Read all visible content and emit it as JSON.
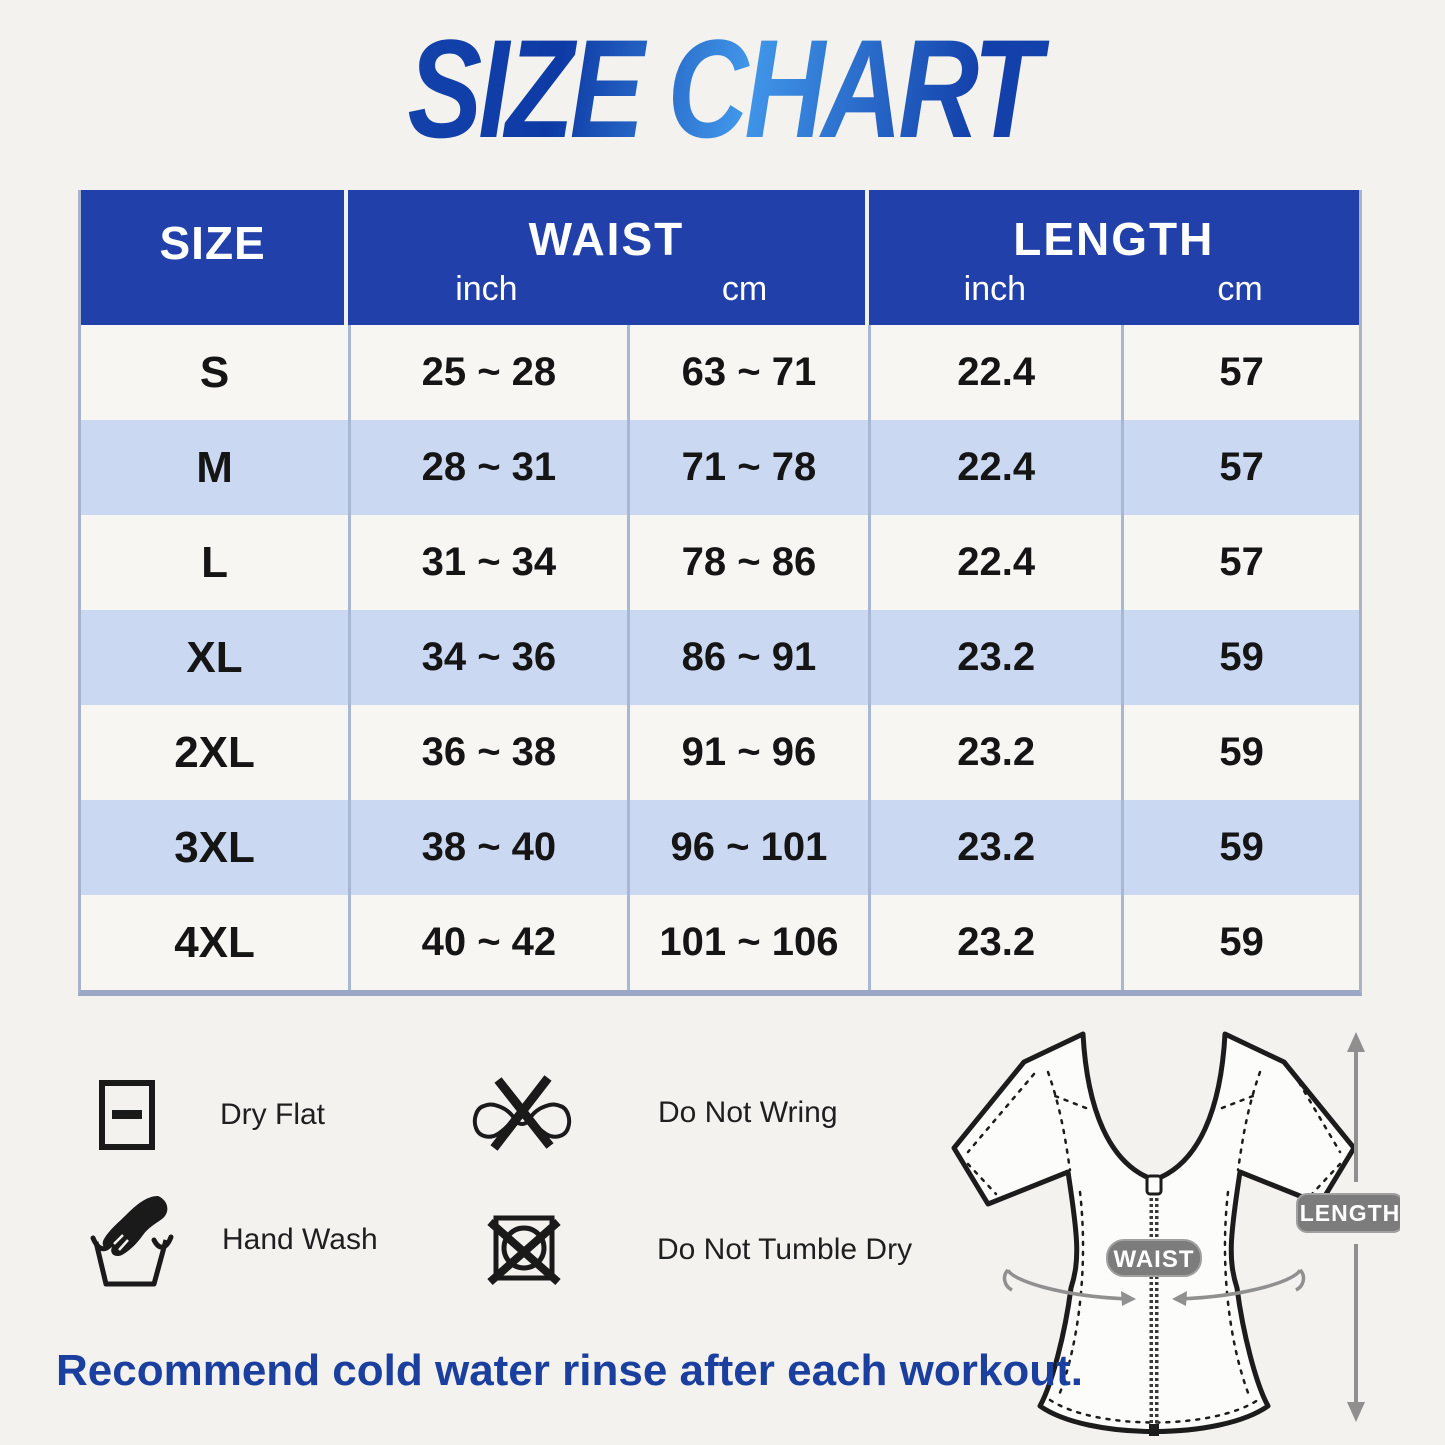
{
  "title": "SIZE CHART",
  "table": {
    "header": {
      "size": "SIZE",
      "waist": "WAIST",
      "length": "LENGTH",
      "waist_unit_inch": "inch",
      "waist_unit_cm": "cm",
      "length_unit_inch": "inch",
      "length_unit_cm": "cm"
    }
  },
  "chart_data": {
    "type": "table",
    "title": "SIZE CHART",
    "columns": [
      "SIZE",
      "WAIST inch",
      "WAIST cm",
      "LENGTH inch",
      "LENGTH cm"
    ],
    "rows": [
      [
        "S",
        "25 ~ 28",
        "63 ~ 71",
        "22.4",
        "57"
      ],
      [
        "M",
        "28 ~ 31",
        "71 ~ 78",
        "22.4",
        "57"
      ],
      [
        "L",
        "31 ~ 34",
        "78 ~ 86",
        "22.4",
        "57"
      ],
      [
        "XL",
        "34 ~ 36",
        "86 ~ 91",
        "23.2",
        "59"
      ],
      [
        "2XL",
        "36 ~ 38",
        "91 ~ 96",
        "23.2",
        "59"
      ],
      [
        "3XL",
        "38 ~ 40",
        "96 ~ 101",
        "23.2",
        "59"
      ],
      [
        "4XL",
        "40 ~ 42",
        "101 ~ 106",
        "23.2",
        "59"
      ]
    ]
  },
  "care": {
    "items": [
      {
        "icon": "dry-flat-icon",
        "label": "Dry Flat"
      },
      {
        "icon": "do-not-wring-icon",
        "label": "Do Not Wring"
      },
      {
        "icon": "hand-wash-icon",
        "label": "Hand Wash"
      },
      {
        "icon": "do-not-tumble-dry-icon",
        "label": "Do Not Tumble Dry"
      }
    ]
  },
  "diagram": {
    "waist_badge": "WAIST",
    "length_badge": "LENGTH"
  },
  "footer": "Recommend cold water rinse after each workout.",
  "colors": {
    "header_blue": "#2140a9",
    "row_alt_blue": "#cbd8f2",
    "row_white": "#f7f6f3",
    "title_gradient_dark": "#0e3aa5",
    "title_gradient_light": "#4197ea",
    "footer_blue": "#1b3f9f",
    "badge_gray": "#7c7c7c",
    "page_background": "#f3f2ef"
  }
}
